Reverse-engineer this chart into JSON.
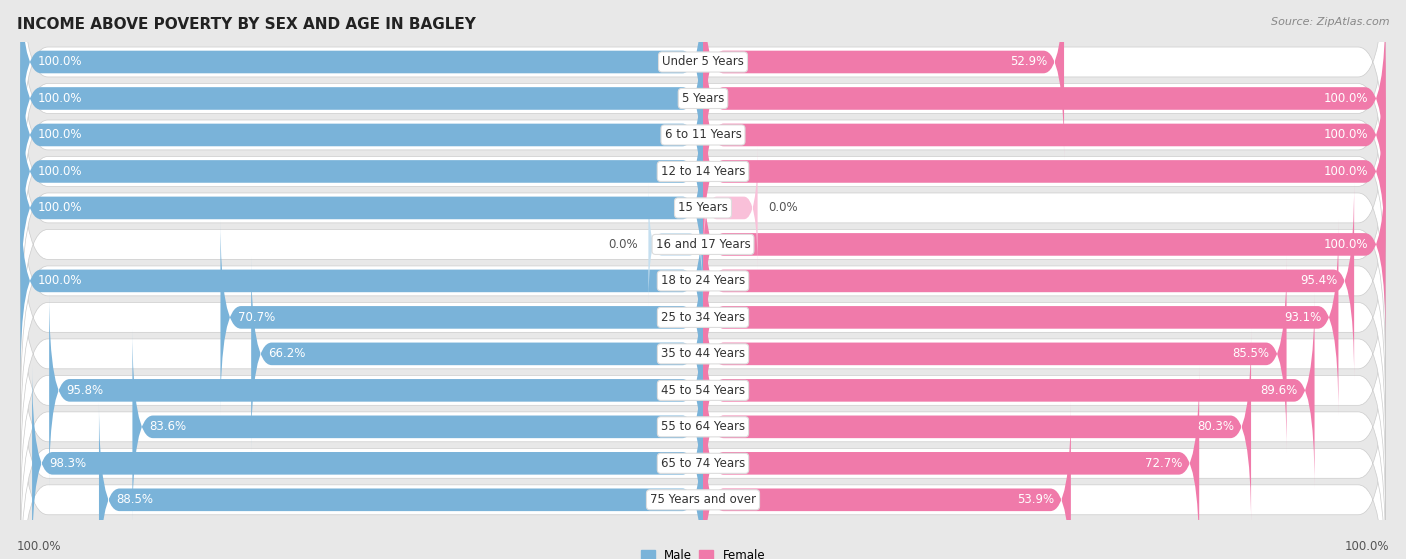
{
  "title": "INCOME ABOVE POVERTY BY SEX AND AGE IN BAGLEY",
  "source": "Source: ZipAtlas.com",
  "categories": [
    "Under 5 Years",
    "5 Years",
    "6 to 11 Years",
    "12 to 14 Years",
    "15 Years",
    "16 and 17 Years",
    "18 to 24 Years",
    "25 to 34 Years",
    "35 to 44 Years",
    "45 to 54 Years",
    "55 to 64 Years",
    "65 to 74 Years",
    "75 Years and over"
  ],
  "male_values": [
    100.0,
    100.0,
    100.0,
    100.0,
    100.0,
    0.0,
    100.0,
    70.7,
    66.2,
    95.8,
    83.6,
    98.3,
    88.5
  ],
  "female_values": [
    52.9,
    100.0,
    100.0,
    100.0,
    0.0,
    100.0,
    95.4,
    93.1,
    85.5,
    89.6,
    80.3,
    72.7,
    53.9
  ],
  "male_color": "#7ab3d9",
  "female_color": "#f07aaa",
  "male_color_light": "#c5dff0",
  "female_color_light": "#f9c0d9",
  "male_label": "Male",
  "female_label": "Female",
  "background_color": "#e8e8e8",
  "row_bg_color": "#ffffff",
  "title_fontsize": 11,
  "label_fontsize": 8.5,
  "bottom_left_label": "100.0%",
  "bottom_right_label": "100.0%"
}
